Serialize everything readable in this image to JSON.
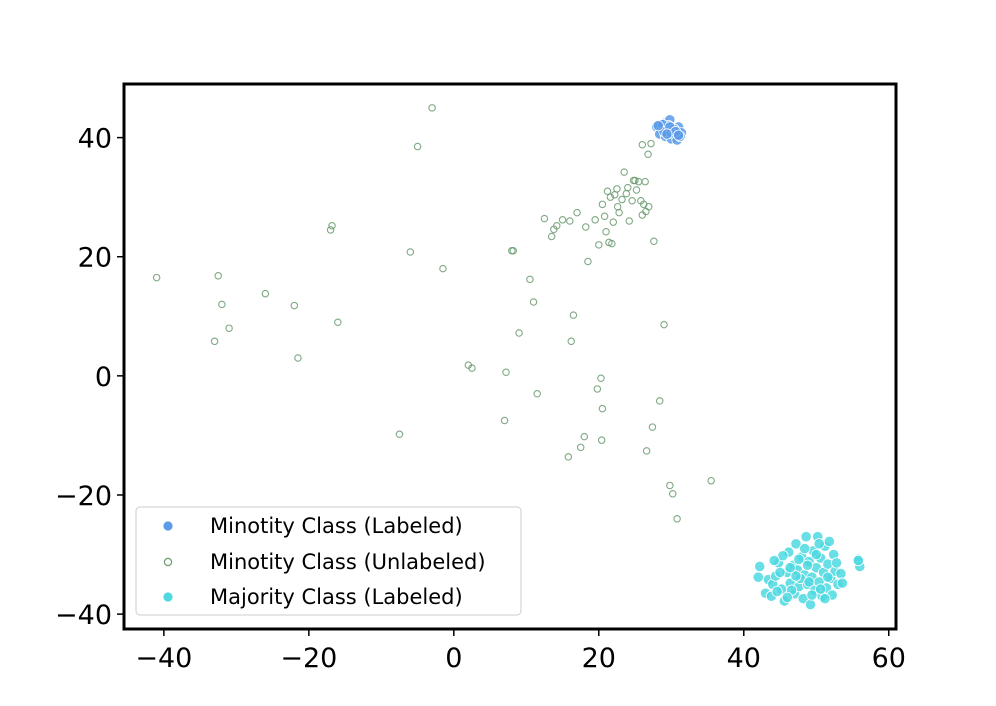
{
  "chart_data": {
    "type": "scatter",
    "title": "",
    "xlabel": "",
    "ylabel": "",
    "xlim": [
      -45.5,
      61
    ],
    "ylim": [
      -42.5,
      49
    ],
    "xticks": [
      -40,
      -20,
      0,
      20,
      40,
      60
    ],
    "yticks": [
      -40,
      -20,
      0,
      20,
      40
    ],
    "xtick_labels": [
      "−40",
      "−20",
      "0",
      "20",
      "40",
      "60"
    ],
    "ytick_labels": [
      "−40",
      "−20",
      "0",
      "20",
      "40"
    ],
    "grid": false,
    "legend_position": "lower-left",
    "series": [
      {
        "name": "Minotity Class (Labeled)",
        "marker": "filled-circle",
        "color": "#5b9be8",
        "edge_color": "#ffffff",
        "points": [
          [
            28.0,
            41.8
          ],
          [
            28.6,
            41.2
          ],
          [
            29.0,
            42.4
          ],
          [
            29.4,
            41.6
          ],
          [
            29.8,
            43.0
          ],
          [
            30.2,
            41.0
          ],
          [
            30.6,
            40.4
          ],
          [
            31.0,
            41.8
          ],
          [
            28.4,
            40.6
          ],
          [
            29.2,
            40.2
          ],
          [
            30.0,
            39.8
          ],
          [
            30.8,
            39.6
          ],
          [
            31.4,
            40.8
          ],
          [
            29.6,
            42.0
          ],
          [
            28.8,
            42.2
          ],
          [
            30.4,
            41.4
          ],
          [
            31.2,
            40.2
          ],
          [
            29.0,
            41.0
          ],
          [
            30.0,
            40.8
          ],
          [
            28.2,
            42.0
          ],
          [
            29.8,
            41.8
          ],
          [
            30.6,
            41.0
          ],
          [
            29.4,
            40.6
          ],
          [
            31.0,
            40.4
          ]
        ]
      },
      {
        "name": "Minotity Class (Unlabeled)",
        "marker": "hollow-circle",
        "color": "#6a9a6e",
        "edge_color": "#6a9a6e",
        "points": [
          [
            -41.0,
            16.5
          ],
          [
            -33.0,
            5.8
          ],
          [
            -32.5,
            16.8
          ],
          [
            -32.0,
            12.0
          ],
          [
            -31.0,
            8.0
          ],
          [
            -26.0,
            13.8
          ],
          [
            -22.0,
            11.8
          ],
          [
            -21.5,
            3.0
          ],
          [
            -17.0,
            24.5
          ],
          [
            -16.8,
            25.2
          ],
          [
            -16.0,
            9.0
          ],
          [
            -7.5,
            -9.8
          ],
          [
            -6.0,
            20.8
          ],
          [
            -5.0,
            38.5
          ],
          [
            -3.0,
            45.0
          ],
          [
            -1.5,
            18.0
          ],
          [
            2.0,
            1.8
          ],
          [
            2.5,
            1.3
          ],
          [
            7.0,
            -7.5
          ],
          [
            7.2,
            0.6
          ],
          [
            8.0,
            21.0
          ],
          [
            8.2,
            21.0
          ],
          [
            9.0,
            7.2
          ],
          [
            10.5,
            16.2
          ],
          [
            11.0,
            12.4
          ],
          [
            11.5,
            -3.0
          ],
          [
            12.5,
            26.4
          ],
          [
            13.5,
            23.4
          ],
          [
            13.8,
            24.6
          ],
          [
            14.2,
            25.2
          ],
          [
            15.0,
            26.2
          ],
          [
            15.8,
            -13.6
          ],
          [
            16.0,
            26.0
          ],
          [
            16.2,
            5.8
          ],
          [
            16.5,
            10.2
          ],
          [
            17.0,
            27.4
          ],
          [
            17.5,
            -12.0
          ],
          [
            18.0,
            -10.2
          ],
          [
            18.2,
            25.0
          ],
          [
            18.5,
            19.2
          ],
          [
            19.5,
            26.2
          ],
          [
            19.8,
            -2.2
          ],
          [
            20.0,
            22.0
          ],
          [
            20.3,
            -0.4
          ],
          [
            20.4,
            -10.8
          ],
          [
            20.5,
            -5.5
          ],
          [
            20.5,
            28.8
          ],
          [
            20.8,
            26.8
          ],
          [
            21.0,
            24.2
          ],
          [
            21.2,
            31.0
          ],
          [
            21.4,
            22.4
          ],
          [
            21.6,
            30.0
          ],
          [
            21.8,
            22.2
          ],
          [
            22.0,
            25.8
          ],
          [
            22.2,
            30.4
          ],
          [
            22.5,
            31.4
          ],
          [
            22.6,
            28.4
          ],
          [
            22.8,
            27.4
          ],
          [
            23.2,
            29.6
          ],
          [
            23.5,
            34.2
          ],
          [
            23.8,
            30.6
          ],
          [
            24.0,
            31.6
          ],
          [
            24.2,
            26.0
          ],
          [
            24.6,
            29.4
          ],
          [
            24.8,
            32.8
          ],
          [
            25.2,
            31.2
          ],
          [
            25.5,
            32.6
          ],
          [
            25.8,
            29.4
          ],
          [
            26.0,
            27.0
          ],
          [
            26.2,
            28.8
          ],
          [
            26.4,
            32.6
          ],
          [
            26.5,
            27.6
          ],
          [
            26.6,
            -12.6
          ],
          [
            26.8,
            37.2
          ],
          [
            26.9,
            28.4
          ],
          [
            27.2,
            39.0
          ],
          [
            27.4,
            -8.6
          ],
          [
            27.6,
            22.6
          ],
          [
            28.4,
            -4.2
          ],
          [
            29.0,
            8.6
          ],
          [
            29.8,
            -18.4
          ],
          [
            30.2,
            -19.8
          ],
          [
            30.8,
            -24.0
          ],
          [
            35.5,
            -17.6
          ],
          [
            26.0,
            38.8
          ],
          [
            25.0,
            32.8
          ]
        ]
      },
      {
        "name": "Majority Class (Labeled)",
        "marker": "filled-circle",
        "color": "#4ed8e0",
        "edge_color": "#ffffff",
        "points": [
          [
            42.0,
            -33.8
          ],
          [
            42.2,
            -32.0
          ],
          [
            43.0,
            -36.5
          ],
          [
            43.4,
            -34.2
          ],
          [
            43.8,
            -37.0
          ],
          [
            44.0,
            -35.0
          ],
          [
            44.4,
            -33.6
          ],
          [
            44.8,
            -31.4
          ],
          [
            45.2,
            -35.8
          ],
          [
            45.6,
            -37.8
          ],
          [
            46.0,
            -33.0
          ],
          [
            46.2,
            -29.6
          ],
          [
            46.4,
            -34.8
          ],
          [
            46.8,
            -31.8
          ],
          [
            47.0,
            -36.6
          ],
          [
            47.2,
            -28.2
          ],
          [
            47.4,
            -32.6
          ],
          [
            47.6,
            -35.4
          ],
          [
            48.0,
            -30.4
          ],
          [
            48.2,
            -37.4
          ],
          [
            48.4,
            -33.4
          ],
          [
            48.6,
            -27.0
          ],
          [
            48.8,
            -35.0
          ],
          [
            49.0,
            -31.2
          ],
          [
            49.2,
            -38.4
          ],
          [
            49.4,
            -33.8
          ],
          [
            49.6,
            -29.4
          ],
          [
            49.8,
            -36.0
          ],
          [
            50.0,
            -32.2
          ],
          [
            50.2,
            -27.0
          ],
          [
            50.4,
            -34.6
          ],
          [
            50.6,
            -30.6
          ],
          [
            50.8,
            -37.0
          ],
          [
            51.0,
            -33.0
          ],
          [
            51.2,
            -28.6
          ],
          [
            51.4,
            -35.6
          ],
          [
            51.6,
            -31.6
          ],
          [
            51.8,
            -27.8
          ],
          [
            52.0,
            -34.0
          ],
          [
            52.2,
            -36.8
          ],
          [
            52.4,
            -30.0
          ],
          [
            52.6,
            -32.8
          ],
          [
            53.0,
            -35.0
          ],
          [
            53.4,
            -33.2
          ],
          [
            53.6,
            -34.8
          ],
          [
            55.8,
            -30.8
          ],
          [
            56.0,
            -32.0
          ],
          [
            55.8,
            -31.0
          ],
          [
            44.6,
            -36.2
          ],
          [
            45.4,
            -30.2
          ],
          [
            46.6,
            -36.0
          ],
          [
            47.8,
            -34.0
          ],
          [
            48.4,
            -29.0
          ],
          [
            49.4,
            -36.8
          ],
          [
            50.6,
            -35.8
          ],
          [
            51.2,
            -37.4
          ],
          [
            46.0,
            -37.2
          ],
          [
            44.2,
            -31.0
          ],
          [
            47.2,
            -33.6
          ],
          [
            48.8,
            -31.8
          ],
          [
            50.0,
            -30.0
          ],
          [
            51.6,
            -33.8
          ],
          [
            52.8,
            -31.4
          ],
          [
            45.0,
            -33.0
          ],
          [
            49.0,
            -34.6
          ],
          [
            47.6,
            -30.8
          ],
          [
            46.4,
            -32.2
          ],
          [
            50.4,
            -28.2
          ]
        ]
      }
    ]
  }
}
